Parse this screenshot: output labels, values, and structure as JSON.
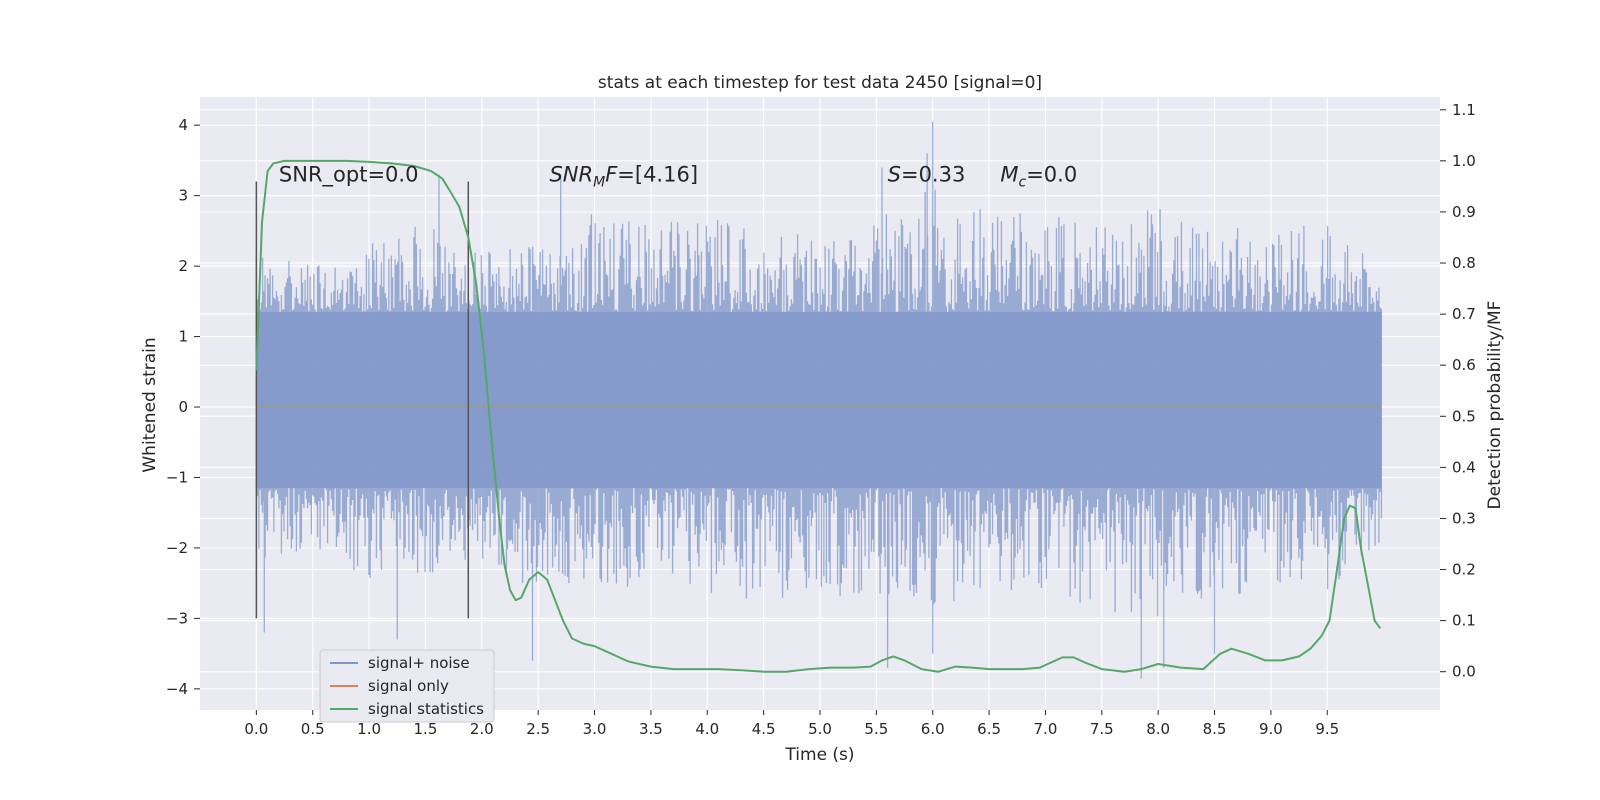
{
  "chart_data": {
    "type": "line",
    "title": "stats at each timestep for test data 2450 [signal=0]",
    "xlabel": "Time (s)",
    "ylabel": "Whitened strain",
    "y2label": "Detection probability/MF",
    "xlim": [
      -0.5,
      10.5
    ],
    "ylim": [
      -4.3,
      4.4
    ],
    "y2lim": [
      -0.075,
      1.125
    ],
    "xticks": [
      0.0,
      0.5,
      1.0,
      1.5,
      2.0,
      2.5,
      3.0,
      3.5,
      4.0,
      4.5,
      5.0,
      5.5,
      6.0,
      6.5,
      7.0,
      7.5,
      8.0,
      8.5,
      9.0,
      9.5
    ],
    "xtick_labels": [
      "0.0",
      "0.5",
      "1.0",
      "1.5",
      "2.0",
      "2.5",
      "3.0",
      "3.5",
      "4.0",
      "4.5",
      "5.0",
      "5.5",
      "6.0",
      "6.5",
      "7.0",
      "7.5",
      "8.0",
      "8.5",
      "9.0",
      "9.5"
    ],
    "yticks": [
      -4,
      -3,
      -2,
      -1,
      0,
      1,
      2,
      3,
      4
    ],
    "ytick_labels": [
      "−4",
      "−3",
      "−2",
      "−1",
      "0",
      "1",
      "2",
      "3",
      "4"
    ],
    "y2ticks": [
      0.0,
      0.1,
      0.2,
      0.3,
      0.4,
      0.5,
      0.6,
      0.7,
      0.8,
      0.9,
      1.0,
      1.1
    ],
    "y2tick_labels": [
      "0.0",
      "0.1",
      "0.2",
      "0.3",
      "0.4",
      "0.5",
      "0.6",
      "0.7",
      "0.8",
      "0.9",
      "1.0",
      "1.1"
    ],
    "grid": true,
    "legend_placement": "lower-left",
    "annotations": [
      {
        "text": "SNR_opt=0.0",
        "x": 0.2,
        "y": 3.2
      },
      {
        "text_html": "<tspan font-style='italic'>SNR</tspan><tspan font-style='italic' font-size='14' dy='5'>M</tspan><tspan font-style='italic' dy='-5'>F</tspan>=[4.16]",
        "x": 2.6,
        "y": 3.2
      },
      {
        "text_html": "<tspan font-style='italic'>S</tspan>=0.33",
        "x": 5.6,
        "y": 3.2
      },
      {
        "text_html": "<tspan font-style='italic'>M</tspan><tspan font-style='italic' font-size='14' dy='5'>c</tspan><tspan dy='-5'>=0.0</tspan>",
        "x": 6.6,
        "y": 3.2
      }
    ],
    "vlines": [
      {
        "x": 0.0,
        "ymin": -3.0,
        "ymax": 3.2
      },
      {
        "x": 1.88,
        "ymin": -3.0,
        "ymax": 3.2
      }
    ],
    "series": [
      {
        "name": "signal+ noise",
        "color": "#7f96c8",
        "x_start": 0.0,
        "x_end": 9.98,
        "band": [
          -1.15,
          1.35
        ],
        "envelope_hi": [
          [
            0.0,
            2.2
          ],
          [
            0.5,
            2.0
          ],
          [
            1.0,
            2.4
          ],
          [
            1.5,
            2.6
          ],
          [
            2.0,
            2.2
          ],
          [
            2.5,
            2.3
          ],
          [
            3.0,
            2.8
          ],
          [
            3.5,
            2.6
          ],
          [
            4.0,
            2.7
          ],
          [
            4.5,
            2.5
          ],
          [
            5.0,
            2.5
          ],
          [
            5.5,
            2.6
          ],
          [
            6.0,
            3.4
          ],
          [
            6.5,
            2.7
          ],
          [
            7.0,
            2.8
          ],
          [
            7.5,
            2.6
          ],
          [
            8.0,
            2.9
          ],
          [
            8.5,
            2.5
          ],
          [
            9.0,
            2.6
          ],
          [
            9.5,
            2.6
          ],
          [
            9.98,
            2.0
          ]
        ],
        "envelope_lo": [
          [
            0.0,
            -2.2
          ],
          [
            0.5,
            -2.0
          ],
          [
            1.0,
            -2.6
          ],
          [
            1.5,
            -2.4
          ],
          [
            2.0,
            -2.3
          ],
          [
            2.5,
            -2.6
          ],
          [
            3.0,
            -2.5
          ],
          [
            3.5,
            -2.6
          ],
          [
            4.0,
            -2.7
          ],
          [
            4.5,
            -2.8
          ],
          [
            5.0,
            -2.6
          ],
          [
            5.5,
            -2.9
          ],
          [
            6.0,
            -2.8
          ],
          [
            6.5,
            -2.7
          ],
          [
            7.0,
            -2.6
          ],
          [
            7.5,
            -2.9
          ],
          [
            8.0,
            -3.0
          ],
          [
            8.5,
            -2.7
          ],
          [
            9.0,
            -2.6
          ],
          [
            9.5,
            -2.6
          ],
          [
            9.98,
            -2.0
          ]
        ],
        "spikes": [
          [
            0.07,
            -3.2
          ],
          [
            1.25,
            -3.3
          ],
          [
            1.62,
            3.3
          ],
          [
            2.45,
            -3.6
          ],
          [
            5.6,
            -3.7
          ],
          [
            6.0,
            4.05
          ],
          [
            6.0,
            -3.5
          ],
          [
            7.85,
            -3.85
          ],
          [
            8.05,
            -3.7
          ],
          [
            8.5,
            -3.5
          ],
          [
            5.95,
            3.6
          ],
          [
            5.55,
            3.4
          ],
          [
            2.7,
            3.3
          ]
        ],
        "axis": "left"
      },
      {
        "name": "signal only",
        "color": "#dd8452",
        "x": [
          0.0,
          9.98
        ],
        "y": [
          0.0,
          0.0
        ],
        "axis": "left"
      },
      {
        "name": "signal statistics",
        "color": "#55a868",
        "axis": "right",
        "x": [
          0.0,
          0.05,
          0.1,
          0.15,
          0.25,
          0.4,
          0.6,
          0.8,
          1.0,
          1.2,
          1.4,
          1.55,
          1.65,
          1.72,
          1.8,
          1.88,
          1.95,
          2.02,
          2.08,
          2.15,
          2.2,
          2.25,
          2.3,
          2.35,
          2.42,
          2.5,
          2.58,
          2.65,
          2.72,
          2.8,
          2.9,
          3.0,
          3.15,
          3.3,
          3.5,
          3.7,
          3.9,
          4.1,
          4.3,
          4.5,
          4.7,
          4.9,
          5.1,
          5.3,
          5.45,
          5.55,
          5.65,
          5.75,
          5.9,
          6.05,
          6.2,
          6.35,
          6.5,
          6.65,
          6.8,
          6.95,
          7.05,
          7.15,
          7.25,
          7.35,
          7.5,
          7.7,
          7.85,
          8.0,
          8.2,
          8.4,
          8.55,
          8.65,
          8.8,
          8.95,
          9.1,
          9.25,
          9.35,
          9.45,
          9.52,
          9.58,
          9.65,
          9.7,
          9.75,
          9.8,
          9.86,
          9.92,
          9.97
        ],
        "y": [
          0.59,
          0.88,
          0.98,
          0.995,
          1.0,
          1.0,
          1.0,
          1.0,
          0.998,
          0.995,
          0.99,
          0.98,
          0.965,
          0.94,
          0.91,
          0.85,
          0.76,
          0.62,
          0.47,
          0.31,
          0.21,
          0.16,
          0.14,
          0.145,
          0.18,
          0.195,
          0.18,
          0.14,
          0.1,
          0.065,
          0.055,
          0.05,
          0.035,
          0.02,
          0.01,
          0.005,
          0.005,
          0.005,
          0.003,
          0.0,
          0.0,
          0.005,
          0.008,
          0.008,
          0.01,
          0.022,
          0.03,
          0.022,
          0.005,
          0.0,
          0.01,
          0.008,
          0.005,
          0.005,
          0.005,
          0.008,
          0.018,
          0.028,
          0.028,
          0.018,
          0.005,
          0.0,
          0.005,
          0.015,
          0.008,
          0.005,
          0.035,
          0.045,
          0.035,
          0.022,
          0.022,
          0.03,
          0.045,
          0.07,
          0.1,
          0.19,
          0.3,
          0.325,
          0.32,
          0.24,
          0.17,
          0.1,
          0.085
        ]
      }
    ]
  }
}
